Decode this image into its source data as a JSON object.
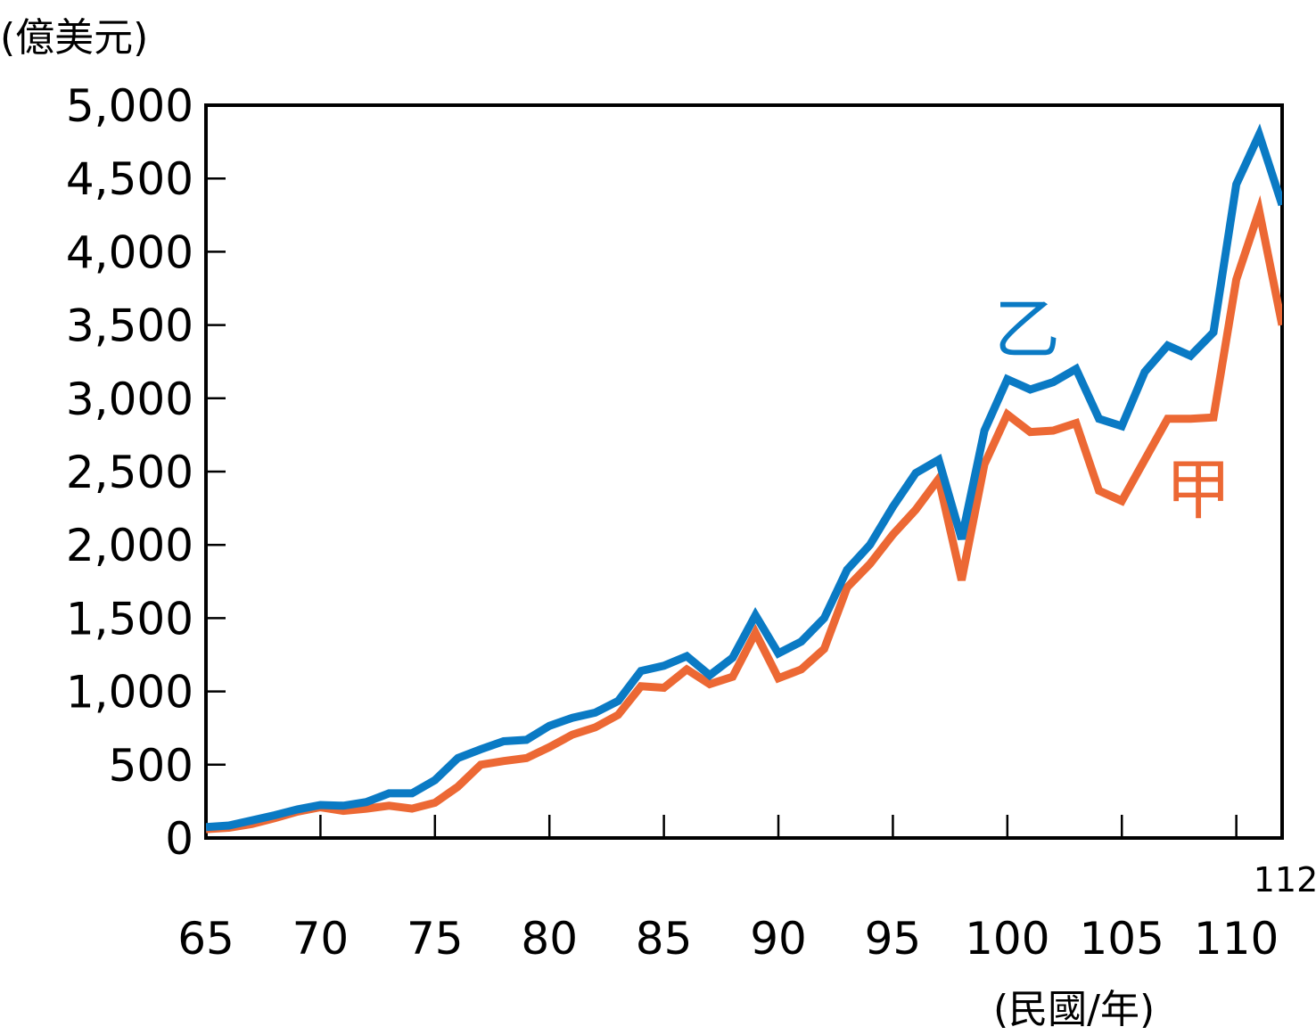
{
  "chart_data": {
    "type": "line",
    "ylabel": "(億美元)",
    "xlabel": "(民國/年)",
    "ylim": [
      0,
      5000
    ],
    "xlim": [
      65,
      112
    ],
    "yticks": [
      "0",
      "500",
      "1,000",
      "1,500",
      "2,000",
      "2,500",
      "3,000",
      "3,500",
      "4,000",
      "4,500",
      "5,000"
    ],
    "ytick_values": [
      0,
      500,
      1000,
      1500,
      2000,
      2500,
      3000,
      3500,
      4000,
      4500,
      5000
    ],
    "xticks": [
      "65",
      "70",
      "75",
      "80",
      "85",
      "90",
      "95",
      "100",
      "105",
      "110"
    ],
    "xtick_values": [
      65,
      70,
      75,
      80,
      85,
      90,
      95,
      100,
      105,
      110
    ],
    "xtick_extra": {
      "label": "112",
      "value": 112
    },
    "grid": false,
    "x": [
      65,
      66,
      67,
      68,
      69,
      70,
      71,
      72,
      73,
      74,
      75,
      76,
      77,
      78,
      79,
      80,
      81,
      82,
      83,
      84,
      85,
      86,
      87,
      88,
      89,
      90,
      91,
      92,
      93,
      94,
      95,
      96,
      97,
      98,
      99,
      100,
      101,
      102,
      103,
      104,
      105,
      106,
      107,
      108,
      109,
      110,
      111,
      112
    ],
    "series": [
      {
        "name": "乙",
        "color": "#0a7ac4",
        "values": [
          75,
          85,
          120,
          155,
          195,
          225,
          220,
          245,
          305,
          305,
          395,
          545,
          605,
          660,
          670,
          765,
          820,
          855,
          935,
          1140,
          1175,
          1240,
          1110,
          1230,
          1520,
          1260,
          1340,
          1500,
          1830,
          2000,
          2260,
          2490,
          2580,
          2040,
          2780,
          3130,
          3060,
          3110,
          3200,
          2860,
          2810,
          3180,
          3360,
          3290,
          3450,
          4460,
          4800,
          4320
        ]
      },
      {
        "name": "甲",
        "color": "#ec6834",
        "values": [
          60,
          70,
          95,
          135,
          180,
          210,
          185,
          200,
          220,
          200,
          240,
          350,
          500,
          525,
          545,
          620,
          705,
          755,
          840,
          1035,
          1025,
          1150,
          1050,
          1100,
          1400,
          1090,
          1150,
          1290,
          1710,
          1870,
          2070,
          2240,
          2450,
          1760,
          2550,
          2890,
          2770,
          2780,
          2830,
          2370,
          2300,
          2580,
          2860,
          2860,
          2870,
          3810,
          4280,
          3500
        ]
      }
    ]
  }
}
